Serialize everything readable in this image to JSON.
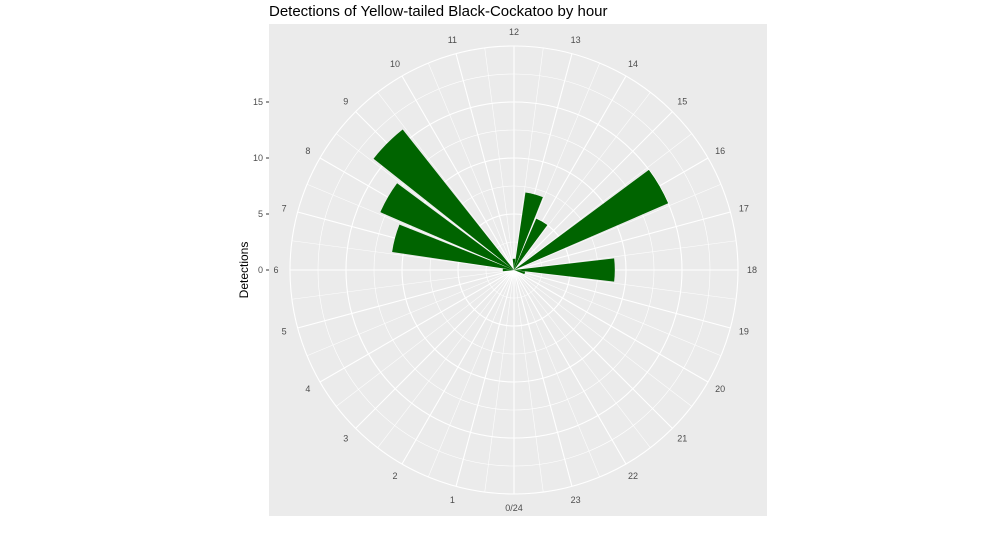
{
  "chart_data": {
    "type": "bar",
    "coord": "polar",
    "title": "Detections of Yellow-tailed Black-Cockatoo by hour",
    "xlabel": "",
    "ylabel": "Detections",
    "categories": [
      "0/24",
      "1",
      "2",
      "3",
      "4",
      "5",
      "6",
      "7",
      "8",
      "9",
      "10",
      "11",
      "12",
      "13",
      "14",
      "15",
      "16",
      "17",
      "18",
      "19",
      "20",
      "21",
      "22",
      "23"
    ],
    "values": [
      0,
      0,
      0,
      0,
      0,
      0,
      1,
      11,
      13,
      16,
      0,
      0,
      1,
      7,
      5,
      0,
      15,
      0,
      9,
      1,
      0,
      0,
      0,
      0
    ],
    "y_ticks": [
      0,
      5,
      10,
      15
    ],
    "y_tick_labels": [
      "0",
      "5",
      "10",
      "15"
    ],
    "ylim": [
      0,
      20
    ],
    "grid": true,
    "panel_color": "#ebebeb",
    "bar_color": "#006400",
    "legend": "none"
  }
}
